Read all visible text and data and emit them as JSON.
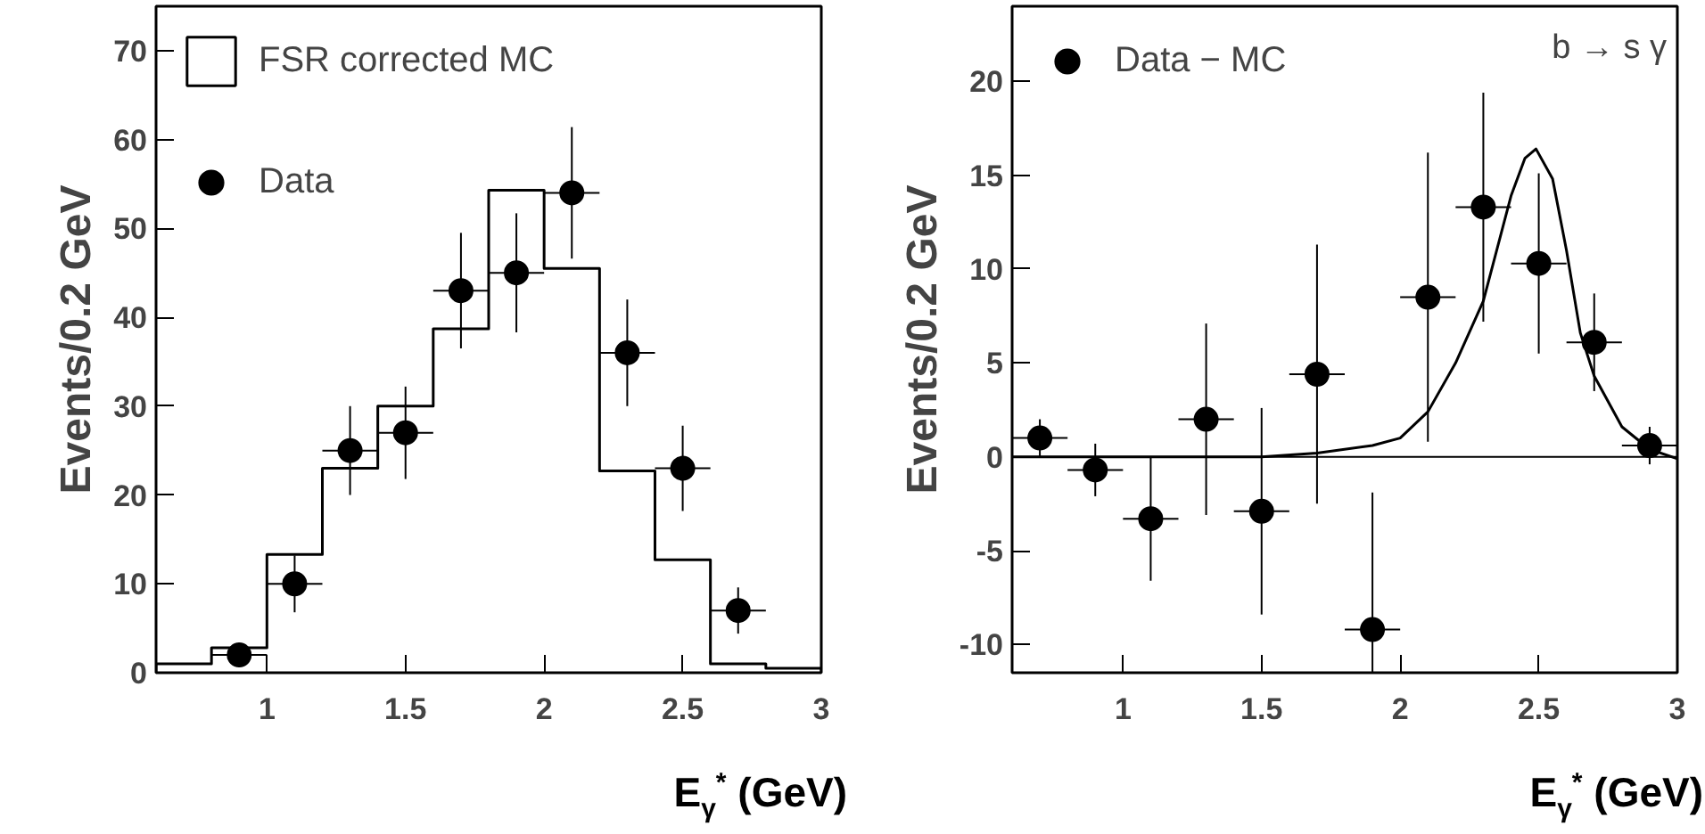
{
  "chart_data": [
    {
      "type": "histogram",
      "xlabel": "E$_{γ}$$^{*}$ (GeV)",
      "ylabel": "Events/0.2 GeV",
      "xlim": [
        0.6,
        3
      ],
      "xticks": [
        1,
        1.5,
        2,
        2.5,
        3
      ],
      "ylim": [
        0,
        75
      ],
      "yticks": [
        0,
        10,
        20,
        30,
        40,
        50,
        60,
        70
      ],
      "legend": "top left",
      "bins": [
        0.6,
        0.8,
        1.0,
        1.2,
        1.4,
        1.6,
        1.8,
        2.0,
        2.2,
        2.4,
        2.6,
        2.8,
        3.0
      ],
      "series": [
        {
          "name": "FSR corrected MC",
          "color": "#000000",
          "values": [
            1,
            2.8,
            13.3,
            23,
            30,
            38.7,
            54.3,
            45.5,
            22.7,
            12.7,
            1,
            0.5
          ]
        },
        {
          "name": "Data",
          "type": "scatter",
          "color": "#000000",
          "marker": "circle",
          "x": [
            0.9,
            1.1,
            1.3,
            1.5,
            1.7,
            1.9,
            2.1,
            2.3,
            2.5,
            2.7
          ],
          "values": [
            2,
            10,
            25,
            27,
            43,
            45,
            54,
            36,
            23,
            7
          ],
          "errors": [
            1.4,
            3.2,
            5,
            5.2,
            6.5,
            6.7,
            7.4,
            6,
            4.8,
            2.6
          ],
          "xerrors": [
            0.1,
            0.1,
            0.1,
            0.1,
            0.1,
            0.1,
            0.1,
            0.1,
            0.1,
            0.1
          ]
        }
      ]
    },
    {
      "type": "scatter",
      "xlabel": "E$_{γ}$$^{*}$ (GeV)",
      "ylabel": "Events/0.2 GeV",
      "xlim": [
        0.6,
        3
      ],
      "xticks": [
        1,
        1.5,
        2,
        2.5,
        3
      ],
      "ylim": [
        -11.5,
        24
      ],
      "yticks": [
        -10,
        -5,
        0,
        5,
        10,
        15,
        20
      ],
      "legend": "top left",
      "annotations": [
        "b → s γ"
      ],
      "ref_lines": [
        {
          "axis": "y",
          "value": 0,
          "color": "#000000"
        }
      ],
      "series": [
        {
          "name": "Data − MC",
          "color": "#000000",
          "marker": "circle",
          "x": [
            0.7,
            0.9,
            1.1,
            1.3,
            1.5,
            1.7,
            1.9,
            2.1,
            2.3,
            2.5,
            2.7,
            2.9
          ],
          "values": [
            1.0,
            -0.7,
            -3.3,
            2.0,
            -2.9,
            4.4,
            -9.2,
            8.5,
            13.3,
            10.3,
            6.1,
            0.6
          ],
          "errors": [
            1,
            1.4,
            3.3,
            5.1,
            5.5,
            6.9,
            [
              -11.5,
              -1.9
            ],
            7.7,
            6.1,
            4.8,
            2.6,
            1
          ],
          "xerrors": [
            0.1,
            0.1,
            0.1,
            0.1,
            0.1,
            0.1,
            0.1,
            0.1,
            0.1,
            0.1,
            0.1,
            0.1
          ]
        },
        {
          "type": "line",
          "color": "#000000",
          "x": [
            0.6,
            1.5,
            1.7,
            1.9,
            2.0,
            2.1,
            2.2,
            2.3,
            2.4,
            2.45,
            2.49,
            2.55,
            2.6,
            2.65,
            2.7,
            2.8,
            2.9,
            3.0
          ],
          "values": [
            0,
            0,
            0.2,
            0.6,
            1.0,
            2.4,
            5.0,
            8.3,
            13.9,
            15.9,
            16.4,
            14.8,
            11.0,
            6.6,
            4.3,
            1.6,
            0.4,
            -0.1
          ]
        }
      ]
    }
  ]
}
